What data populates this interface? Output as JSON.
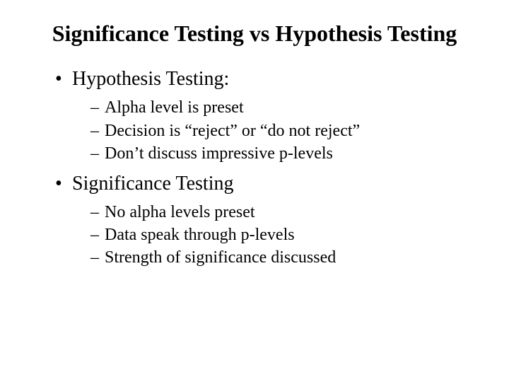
{
  "title": "Significance Testing vs Hypothesis Testing",
  "sections": [
    {
      "heading": "Hypothesis Testing:",
      "items": [
        "Alpha level is preset",
        "Decision is “reject” or “do not reject”",
        "Don’t discuss impressive p-levels"
      ]
    },
    {
      "heading": "Significance Testing",
      "items": [
        "No alpha levels preset",
        "Data speak through p-levels",
        "Strength of significance discussed"
      ]
    }
  ],
  "colors": {
    "background": "#ffffff",
    "text": "#000000"
  },
  "typography": {
    "font_family": "Times New Roman",
    "title_fontsize": 32,
    "title_weight": "bold",
    "l1_fontsize": 28,
    "l2_fontsize": 24
  }
}
